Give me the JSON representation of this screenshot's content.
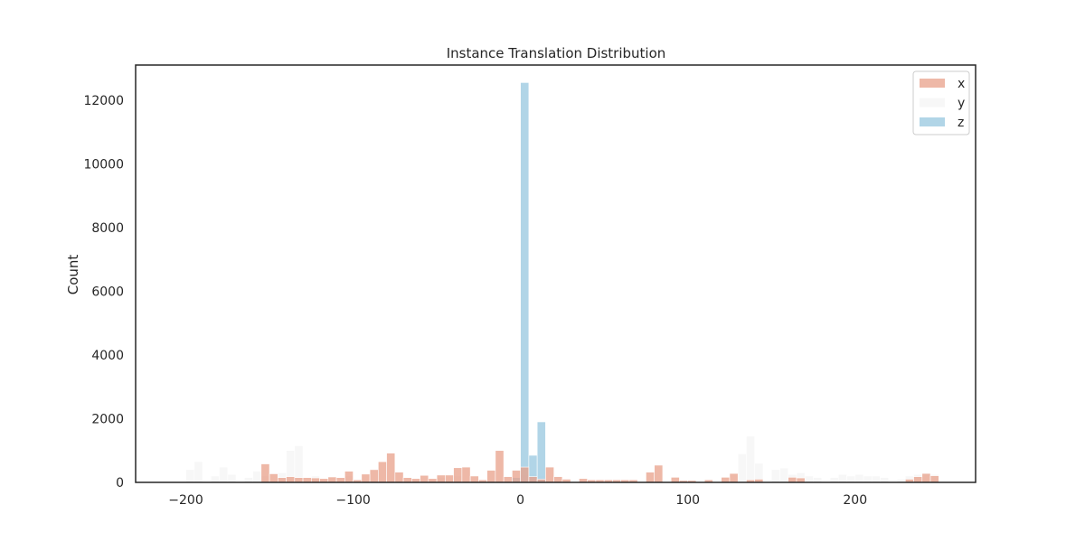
{
  "chart_data": {
    "type": "bar",
    "title": "Instance Translation Distribution",
    "xlabel": "",
    "ylabel": "Count",
    "xlim": [
      -230,
      272
    ],
    "ylim": [
      0,
      13100
    ],
    "xticks": [
      -200,
      -100,
      0,
      100,
      200
    ],
    "xtick_labels": [
      "−200",
      "−100",
      "0",
      "100",
      "200"
    ],
    "yticks": [
      0,
      2000,
      4000,
      6000,
      8000,
      10000,
      12000
    ],
    "ytick_labels": [
      "0",
      "2000",
      "4000",
      "6000",
      "8000",
      "10000",
      "12000"
    ],
    "grid": false,
    "legend_position": "top-right",
    "bin_width": 5,
    "series": [
      {
        "name": "y",
        "color": "#f2f2f2",
        "opacity": 0.6,
        "bins": [
          {
            "x": -200,
            "count": 400
          },
          {
            "x": -195,
            "count": 650
          },
          {
            "x": -185,
            "count": 200
          },
          {
            "x": -180,
            "count": 480
          },
          {
            "x": -175,
            "count": 250
          },
          {
            "x": -165,
            "count": 150
          },
          {
            "x": -160,
            "count": 350
          },
          {
            "x": -155,
            "count": 200
          },
          {
            "x": -145,
            "count": 300
          },
          {
            "x": -140,
            "count": 1000
          },
          {
            "x": -135,
            "count": 1150
          },
          {
            "x": -125,
            "count": 200
          },
          {
            "x": -105,
            "count": 200
          },
          {
            "x": -50,
            "count": 150
          },
          {
            "x": -40,
            "count": 200
          },
          {
            "x": 0,
            "count": 250
          },
          {
            "x": 5,
            "count": 250
          },
          {
            "x": 10,
            "count": 200
          },
          {
            "x": 130,
            "count": 900
          },
          {
            "x": 135,
            "count": 1450
          },
          {
            "x": 140,
            "count": 600
          },
          {
            "x": 150,
            "count": 400
          },
          {
            "x": 155,
            "count": 450
          },
          {
            "x": 160,
            "count": 250
          },
          {
            "x": 165,
            "count": 300
          },
          {
            "x": 170,
            "count": 200
          },
          {
            "x": 175,
            "count": 150
          },
          {
            "x": 185,
            "count": 150
          },
          {
            "x": 190,
            "count": 250
          },
          {
            "x": 195,
            "count": 200
          },
          {
            "x": 200,
            "count": 250
          },
          {
            "x": 205,
            "count": 200
          },
          {
            "x": 210,
            "count": 200
          },
          {
            "x": 215,
            "count": 150
          },
          {
            "x": 225,
            "count": 100
          },
          {
            "x": 230,
            "count": 200
          },
          {
            "x": 235,
            "count": 250
          },
          {
            "x": 240,
            "count": 300
          },
          {
            "x": 245,
            "count": 250
          }
        ]
      },
      {
        "name": "z",
        "color": "#9ecae1",
        "opacity": 0.8,
        "bins": [
          {
            "x": -5,
            "count": 150
          },
          {
            "x": 0,
            "count": 12550
          },
          {
            "x": 5,
            "count": 850
          },
          {
            "x": 10,
            "count": 1900
          }
        ]
      },
      {
        "name": "x",
        "color": "#e8a08a",
        "opacity": 0.75,
        "bins": [
          {
            "x": -155,
            "count": 580
          },
          {
            "x": -150,
            "count": 270
          },
          {
            "x": -145,
            "count": 150
          },
          {
            "x": -140,
            "count": 180
          },
          {
            "x": -135,
            "count": 150
          },
          {
            "x": -130,
            "count": 150
          },
          {
            "x": -125,
            "count": 140
          },
          {
            "x": -120,
            "count": 120
          },
          {
            "x": -115,
            "count": 170
          },
          {
            "x": -110,
            "count": 150
          },
          {
            "x": -105,
            "count": 350
          },
          {
            "x": -100,
            "count": 80
          },
          {
            "x": -95,
            "count": 260
          },
          {
            "x": -90,
            "count": 400
          },
          {
            "x": -85,
            "count": 650
          },
          {
            "x": -80,
            "count": 920
          },
          {
            "x": -75,
            "count": 320
          },
          {
            "x": -70,
            "count": 150
          },
          {
            "x": -65,
            "count": 120
          },
          {
            "x": -60,
            "count": 220
          },
          {
            "x": -55,
            "count": 120
          },
          {
            "x": -50,
            "count": 230
          },
          {
            "x": -45,
            "count": 230
          },
          {
            "x": -40,
            "count": 460
          },
          {
            "x": -35,
            "count": 480
          },
          {
            "x": -30,
            "count": 200
          },
          {
            "x": -25,
            "count": 80
          },
          {
            "x": -20,
            "count": 380
          },
          {
            "x": -15,
            "count": 1000
          },
          {
            "x": -10,
            "count": 180
          },
          {
            "x": -5,
            "count": 380
          },
          {
            "x": 0,
            "count": 480
          },
          {
            "x": 5,
            "count": 180
          },
          {
            "x": 10,
            "count": 100
          },
          {
            "x": 15,
            "count": 480
          },
          {
            "x": 20,
            "count": 180
          },
          {
            "x": 25,
            "count": 100
          },
          {
            "x": 35,
            "count": 120
          },
          {
            "x": 40,
            "count": 80
          },
          {
            "x": 45,
            "count": 80
          },
          {
            "x": 50,
            "count": 80
          },
          {
            "x": 55,
            "count": 80
          },
          {
            "x": 60,
            "count": 80
          },
          {
            "x": 65,
            "count": 80
          },
          {
            "x": 75,
            "count": 320
          },
          {
            "x": 80,
            "count": 540
          },
          {
            "x": 90,
            "count": 160
          },
          {
            "x": 95,
            "count": 60
          },
          {
            "x": 100,
            "count": 60
          },
          {
            "x": 110,
            "count": 80
          },
          {
            "x": 120,
            "count": 160
          },
          {
            "x": 125,
            "count": 280
          },
          {
            "x": 135,
            "count": 80
          },
          {
            "x": 140,
            "count": 100
          },
          {
            "x": 160,
            "count": 160
          },
          {
            "x": 165,
            "count": 140
          },
          {
            "x": 230,
            "count": 100
          },
          {
            "x": 235,
            "count": 180
          },
          {
            "x": 240,
            "count": 280
          },
          {
            "x": 245,
            "count": 210
          }
        ]
      }
    ],
    "legend": [
      {
        "label": "x",
        "color": "#e8a08a",
        "opacity": 0.75
      },
      {
        "label": "y",
        "color": "#f2f2f2",
        "opacity": 0.6
      },
      {
        "label": "z",
        "color": "#9ecae1",
        "opacity": 0.8
      }
    ]
  }
}
